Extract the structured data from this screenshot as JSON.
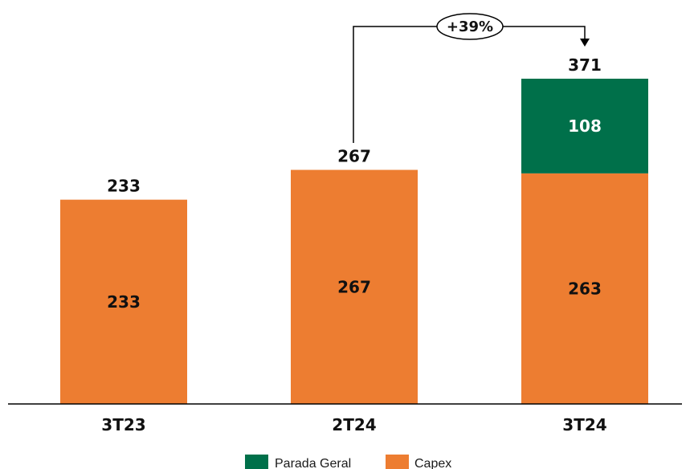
{
  "chart_data": {
    "type": "bar",
    "stacked": true,
    "categories": [
      "3T23",
      "2T24",
      "3T24"
    ],
    "series": [
      {
        "name": "Capex",
        "color": "#ED7D31",
        "values": [
          233,
          267,
          263
        ]
      },
      {
        "name": "Parada Geral",
        "color": "#00704A",
        "values": [
          null,
          null,
          108
        ]
      }
    ],
    "totals": [
      233,
      267,
      371
    ],
    "segment_labels": {
      "Capex": [
        "233",
        "267",
        "263"
      ],
      "Parada Geral": [
        "",
        "",
        "108"
      ]
    },
    "total_labels": [
      "233",
      "267",
      "371"
    ],
    "ylim": [
      0,
      371
    ],
    "grid": false,
    "legend": {
      "placement": "bottom-center",
      "entries": [
        {
          "name": "Parada Geral",
          "color": "#00704A"
        },
        {
          "name": "Capex",
          "color": "#ED7D31"
        }
      ]
    },
    "annotation": {
      "text": "+39%",
      "from_category": "2T24",
      "to_category": "3T24"
    }
  }
}
